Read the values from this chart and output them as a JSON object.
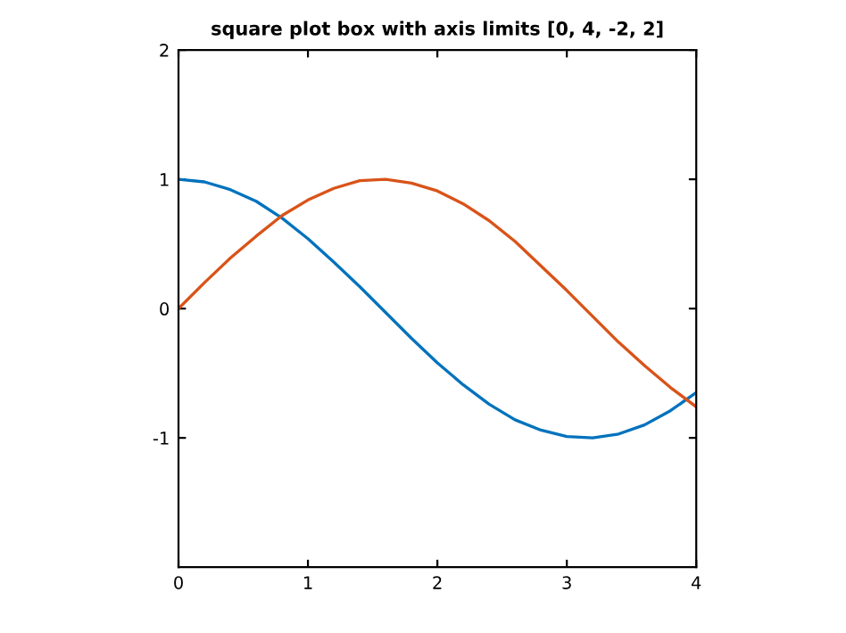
{
  "chart_data": {
    "type": "line",
    "title": "square plot box with axis limits [0, 4, -2, 2]",
    "x": [
      0,
      0.2,
      0.4,
      0.6,
      0.8,
      1.0,
      1.2,
      1.4,
      1.6,
      1.8,
      2.0,
      2.2,
      2.4,
      2.6,
      2.8,
      3.0,
      3.2,
      3.4,
      3.6,
      3.8,
      4.0
    ],
    "series": [
      {
        "color": "#0072bd",
        "values": [
          1.0,
          0.98,
          0.92,
          0.83,
          0.7,
          0.54,
          0.36,
          0.17,
          -0.03,
          -0.23,
          -0.42,
          -0.59,
          -0.74,
          -0.86,
          -0.94,
          -0.99,
          -1.0,
          -0.97,
          -0.9,
          -0.79,
          -0.65
        ]
      },
      {
        "color": "#d95319",
        "values": [
          0.0,
          0.2,
          0.39,
          0.56,
          0.72,
          0.84,
          0.93,
          0.99,
          1.0,
          0.97,
          0.91,
          0.81,
          0.68,
          0.52,
          0.33,
          0.14,
          -0.06,
          -0.26,
          -0.44,
          -0.61,
          -0.76
        ]
      }
    ],
    "xlim": [
      0,
      4
    ],
    "ylim": [
      -2,
      2
    ],
    "xticks": [
      0,
      1,
      2,
      3,
      4
    ],
    "yticks": [
      -1,
      0,
      1,
      2
    ],
    "grid": false,
    "line_style": "solid"
  }
}
